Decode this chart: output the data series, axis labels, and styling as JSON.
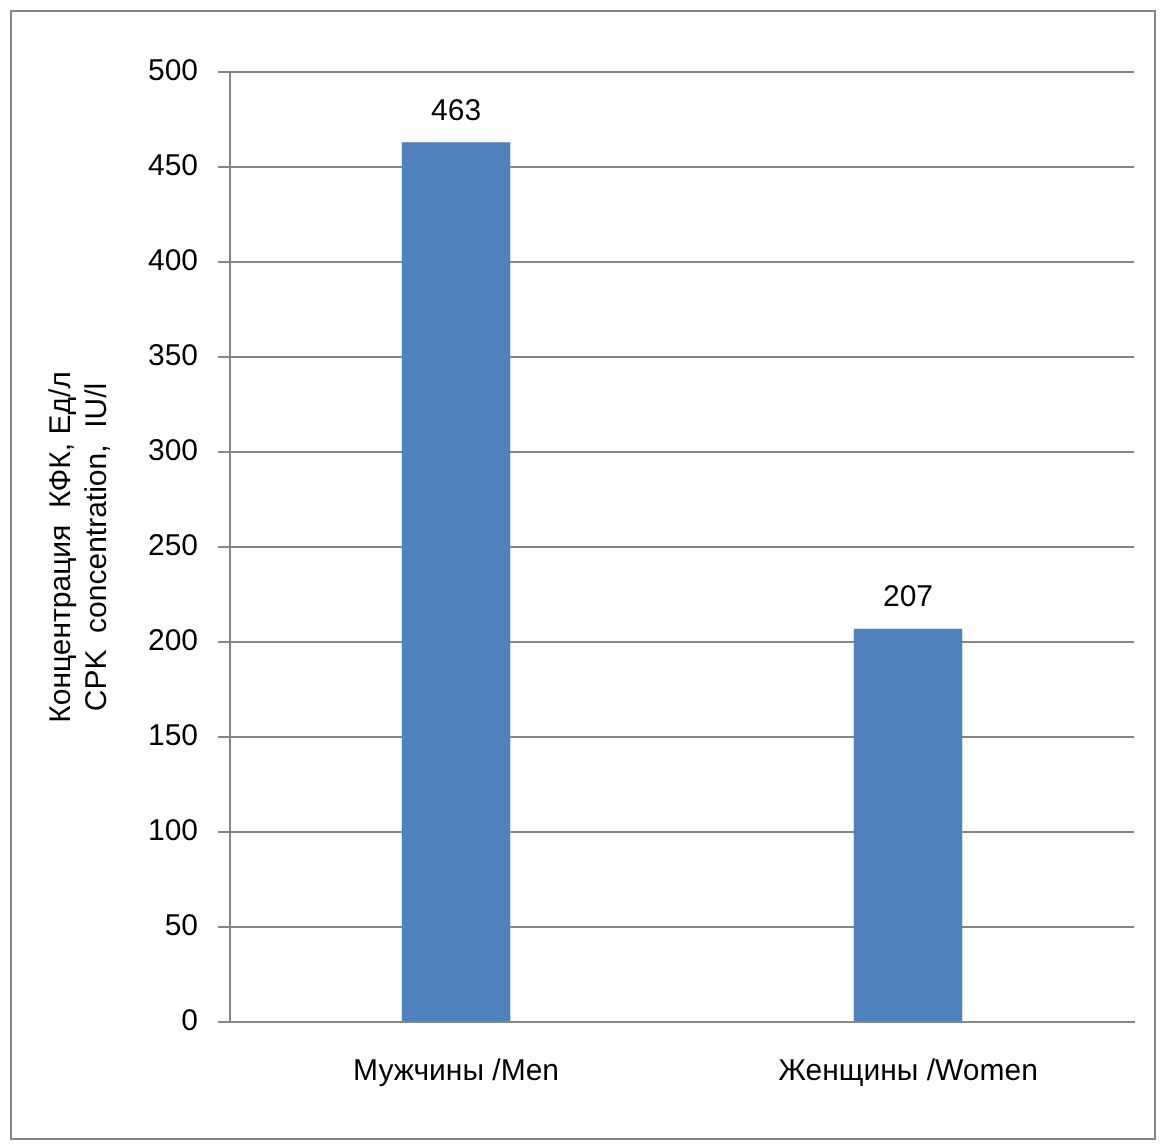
{
  "chart_data": {
    "type": "bar",
    "ylabel": "Концентрация  КФК, Ед/л\nCPK  concentration,  IU/l",
    "categories": [
      "Мужчины /Men",
      "Женщины /Women"
    ],
    "values": [
      463,
      207
    ],
    "color": "#4f81bd",
    "ylim": [
      0,
      500
    ],
    "yticks": [
      0,
      50,
      100,
      150,
      200,
      250,
      300,
      350,
      400,
      450,
      500
    ],
    "grid": "y",
    "data_labels": true,
    "legend": false
  }
}
